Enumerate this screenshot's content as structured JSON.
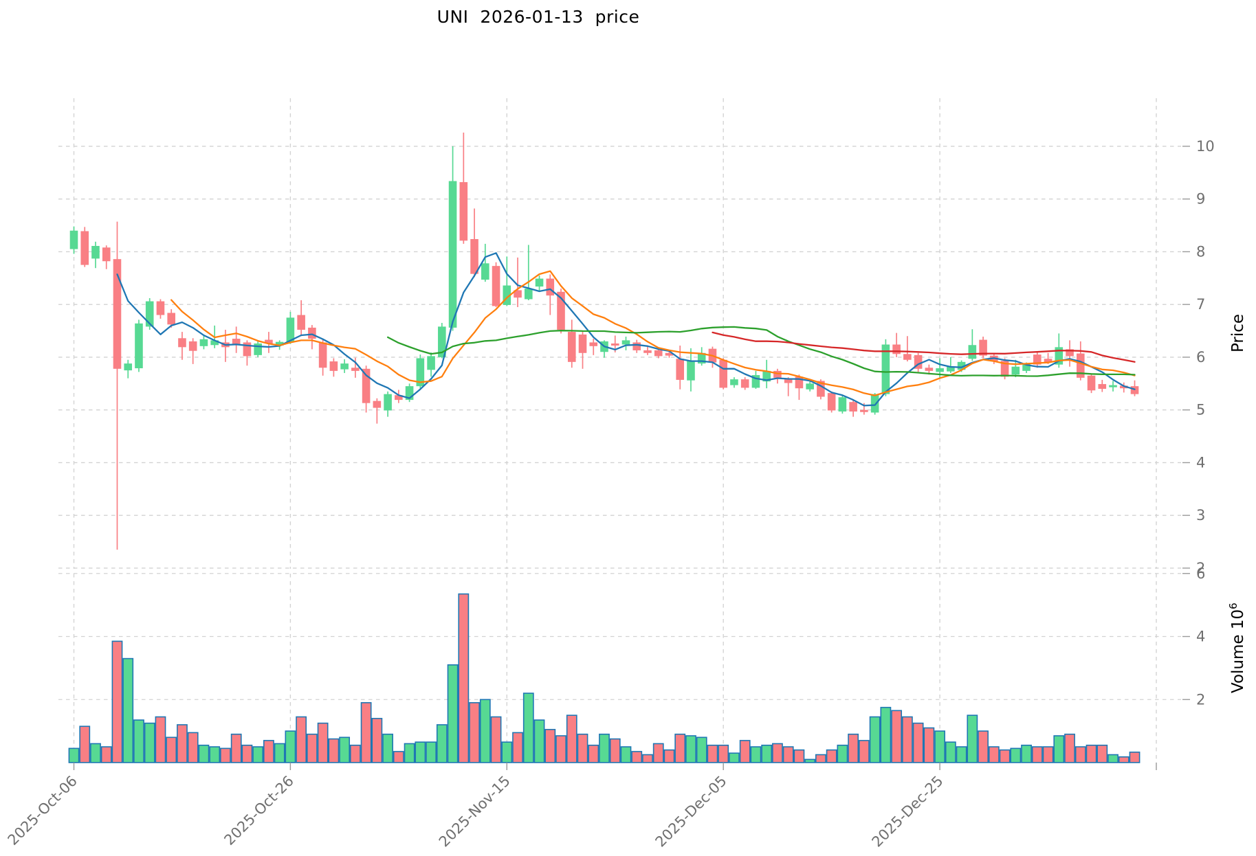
{
  "title": "UNI  2026-01-13  price",
  "chart_data": {
    "type": "candlestick",
    "title": "UNI  2026-01-13  price",
    "grid": true,
    "panels": [
      {
        "name": "price",
        "ylabel": "Price",
        "yticks": [
          2,
          3,
          4,
          5,
          6,
          7,
          8,
          9,
          10
        ],
        "ylim": [
          1.96,
          10.95
        ]
      },
      {
        "name": "volume",
        "ylabel": "Volume",
        "ylabel_scale": "10⁶",
        "yticks": [
          2,
          4,
          6
        ],
        "ylim": [
          0,
          6.06
        ],
        "unit": 1000000
      }
    ],
    "x_ticks": [
      {
        "index": 0,
        "label": "2025-Oct-06"
      },
      {
        "index": 20,
        "label": "2025-Oct-26"
      },
      {
        "index": 40,
        "label": "2025-Nov-15"
      },
      {
        "index": 60,
        "label": "2025-Dec-05"
      },
      {
        "index": 80,
        "label": "2025-Dec-25"
      },
      {
        "index": 100,
        "label": ""
      }
    ],
    "moving_averages": [
      {
        "name": "MA5",
        "window": 5,
        "color": "#1f77b4"
      },
      {
        "name": "MA10",
        "window": 10,
        "color": "#ff7f0e"
      },
      {
        "name": "MA30",
        "window": 30,
        "color": "#2ca02c"
      },
      {
        "name": "MA60",
        "window": 60,
        "color": "#d62728"
      }
    ],
    "colors": {
      "up": "#57d993",
      "down": "#f97f84",
      "volume_edge": "#1f77b4",
      "grid": "#d2d2d2",
      "tick_label": "#6f6f6f",
      "axis_label": "#000000"
    },
    "columns": [
      "date",
      "open",
      "high",
      "low",
      "close",
      "volume_millions"
    ],
    "candles": [
      [
        "2025-10-06",
        8.05,
        8.48,
        7.96,
        8.4,
        0.45
      ],
      [
        "2025-10-07",
        8.39,
        8.47,
        7.71,
        7.75,
        1.15
      ],
      [
        "2025-10-08",
        7.87,
        8.19,
        7.69,
        8.11,
        0.6
      ],
      [
        "2025-10-09",
        8.08,
        8.12,
        7.67,
        7.82,
        0.5
      ],
      [
        "2025-10-10",
        7.86,
        8.57,
        2.35,
        5.78,
        3.85
      ],
      [
        "2025-10-11",
        5.75,
        5.95,
        5.6,
        5.88,
        3.3
      ],
      [
        "2025-10-12",
        5.79,
        6.71,
        5.72,
        6.64,
        1.35
      ],
      [
        "2025-10-13",
        6.58,
        7.12,
        6.52,
        7.06,
        1.25
      ],
      [
        "2025-10-14",
        7.06,
        7.1,
        6.73,
        6.8,
        1.45
      ],
      [
        "2025-10-15",
        6.84,
        6.91,
        6.56,
        6.62,
        0.8
      ],
      [
        "2025-10-16",
        6.36,
        6.48,
        5.95,
        6.19,
        1.2
      ],
      [
        "2025-10-17",
        6.3,
        6.36,
        5.87,
        6.12,
        0.95
      ],
      [
        "2025-10-18",
        6.21,
        6.4,
        6.15,
        6.34,
        0.55
      ],
      [
        "2025-10-19",
        6.23,
        6.6,
        6.17,
        6.32,
        0.5
      ],
      [
        "2025-10-20",
        6.28,
        6.52,
        5.91,
        6.19,
        0.45
      ],
      [
        "2025-10-21",
        6.35,
        6.58,
        6.08,
        6.24,
        0.9
      ],
      [
        "2025-10-22",
        6.28,
        6.32,
        5.84,
        6.02,
        0.55
      ],
      [
        "2025-10-23",
        6.04,
        6.3,
        6.0,
        6.26,
        0.5
      ],
      [
        "2025-10-24",
        6.33,
        6.48,
        6.08,
        6.26,
        0.7
      ],
      [
        "2025-10-25",
        6.22,
        6.32,
        6.14,
        6.29,
        0.6
      ],
      [
        "2025-10-26",
        6.29,
        6.86,
        6.25,
        6.75,
        1.0
      ],
      [
        "2025-10-27",
        6.8,
        7.08,
        6.4,
        6.52,
        1.45
      ],
      [
        "2025-10-28",
        6.56,
        6.61,
        6.15,
        6.35,
        0.9
      ],
      [
        "2025-10-29",
        6.28,
        6.35,
        5.65,
        5.8,
        1.25
      ],
      [
        "2025-10-30",
        5.92,
        5.98,
        5.63,
        5.74,
        0.75
      ],
      [
        "2025-10-31",
        5.77,
        5.96,
        5.7,
        5.88,
        0.8
      ],
      [
        "2025-11-01",
        5.8,
        5.99,
        5.61,
        5.74,
        0.55
      ],
      [
        "2025-11-02",
        5.78,
        5.84,
        4.95,
        5.13,
        1.9
      ],
      [
        "2025-11-03",
        5.17,
        5.22,
        4.74,
        5.04,
        1.4
      ],
      [
        "2025-11-04",
        4.99,
        5.35,
        4.87,
        5.3,
        0.9
      ],
      [
        "2025-11-05",
        5.28,
        5.38,
        5.13,
        5.19,
        0.35
      ],
      [
        "2025-11-06",
        5.19,
        5.5,
        5.15,
        5.45,
        0.6
      ],
      [
        "2025-11-07",
        5.45,
        6.05,
        5.4,
        5.98,
        0.65
      ],
      [
        "2025-11-08",
        5.76,
        6.09,
        5.63,
        6.02,
        0.65
      ],
      [
        "2025-11-09",
        6.0,
        6.65,
        5.98,
        6.58,
        1.2
      ],
      [
        "2025-11-10",
        6.56,
        10.0,
        6.5,
        9.34,
        3.1
      ],
      [
        "2025-11-11",
        9.32,
        10.26,
        8.15,
        8.21,
        5.35
      ],
      [
        "2025-11-12",
        8.24,
        8.82,
        7.52,
        7.58,
        1.9
      ],
      [
        "2025-11-13",
        7.47,
        8.15,
        7.43,
        7.78,
        2.0
      ],
      [
        "2025-11-14",
        7.73,
        7.8,
        6.95,
        6.97,
        1.45
      ],
      [
        "2025-11-15",
        6.99,
        7.91,
        6.97,
        7.36,
        0.65
      ],
      [
        "2025-11-16",
        7.27,
        7.89,
        6.95,
        7.13,
        0.95
      ],
      [
        "2025-11-17",
        7.1,
        8.13,
        7.08,
        7.3,
        2.2
      ],
      [
        "2025-11-18",
        7.34,
        7.55,
        7.25,
        7.49,
        1.35
      ],
      [
        "2025-11-19",
        7.49,
        7.57,
        6.8,
        7.17,
        1.05
      ],
      [
        "2025-11-20",
        7.24,
        7.3,
        6.45,
        6.52,
        0.85
      ],
      [
        "2025-11-21",
        6.48,
        6.71,
        5.8,
        5.91,
        1.5
      ],
      [
        "2025-11-22",
        6.43,
        6.49,
        5.78,
        6.08,
        0.9
      ],
      [
        "2025-11-23",
        6.28,
        6.35,
        6.04,
        6.21,
        0.55
      ],
      [
        "2025-11-24",
        6.1,
        6.32,
        5.99,
        6.3,
        0.9
      ],
      [
        "2025-11-25",
        6.26,
        6.41,
        6.09,
        6.22,
        0.75
      ],
      [
        "2025-11-26",
        6.24,
        6.39,
        6.13,
        6.32,
        0.5
      ],
      [
        "2025-11-27",
        6.28,
        6.33,
        6.08,
        6.13,
        0.35
      ],
      [
        "2025-11-28",
        6.13,
        6.21,
        6.04,
        6.08,
        0.25
      ],
      [
        "2025-11-29",
        6.13,
        6.15,
        5.98,
        6.02,
        0.6
      ],
      [
        "2025-11-30",
        6.08,
        6.12,
        5.99,
        6.03,
        0.4
      ],
      [
        "2025-12-01",
        5.97,
        6.22,
        5.39,
        5.57,
        0.9
      ],
      [
        "2025-12-02",
        5.56,
        6.17,
        5.35,
        5.93,
        0.85
      ],
      [
        "2025-12-03",
        5.88,
        6.19,
        5.84,
        6.08,
        0.8
      ],
      [
        "2025-12-04",
        6.16,
        6.2,
        5.8,
        5.9,
        0.55
      ],
      [
        "2025-12-05",
        5.95,
        5.98,
        5.39,
        5.42,
        0.55
      ],
      [
        "2025-12-06",
        5.47,
        5.62,
        5.42,
        5.58,
        0.3
      ],
      [
        "2025-12-07",
        5.58,
        5.62,
        5.38,
        5.42,
        0.7
      ],
      [
        "2025-12-08",
        5.42,
        5.74,
        5.4,
        5.66,
        0.5
      ],
      [
        "2025-12-09",
        5.54,
        5.95,
        5.41,
        5.74,
        0.55
      ],
      [
        "2025-12-10",
        5.74,
        5.78,
        5.5,
        5.61,
        0.6
      ],
      [
        "2025-12-11",
        5.58,
        5.62,
        5.26,
        5.51,
        0.5
      ],
      [
        "2025-12-12",
        5.63,
        5.67,
        5.19,
        5.41,
        0.4
      ],
      [
        "2025-12-13",
        5.39,
        5.54,
        5.35,
        5.5,
        0.1
      ],
      [
        "2025-12-14",
        5.55,
        5.58,
        5.2,
        5.25,
        0.25
      ],
      [
        "2025-12-15",
        5.32,
        5.35,
        4.95,
        4.99,
        0.4
      ],
      [
        "2025-12-16",
        4.97,
        5.28,
        4.93,
        5.24,
        0.55
      ],
      [
        "2025-12-17",
        5.15,
        5.2,
        4.87,
        4.97,
        0.9
      ],
      [
        "2025-12-18",
        5.0,
        5.13,
        4.91,
        4.96,
        0.7
      ],
      [
        "2025-12-19",
        4.95,
        5.32,
        4.91,
        5.3,
        1.45
      ],
      [
        "2025-12-20",
        5.3,
        6.34,
        5.26,
        6.24,
        1.75
      ],
      [
        "2025-12-21",
        6.24,
        6.46,
        6.0,
        6.06,
        1.65
      ],
      [
        "2025-12-22",
        6.06,
        6.4,
        5.92,
        5.95,
        1.45
      ],
      [
        "2025-12-23",
        6.04,
        6.08,
        5.72,
        5.78,
        1.25
      ],
      [
        "2025-12-24",
        5.8,
        5.86,
        5.67,
        5.74,
        1.1
      ],
      [
        "2025-12-25",
        5.72,
        5.98,
        5.61,
        5.79,
        1.0
      ],
      [
        "2025-12-26",
        5.73,
        6.0,
        5.7,
        5.82,
        0.65
      ],
      [
        "2025-12-27",
        5.76,
        5.94,
        5.72,
        5.91,
        0.5
      ],
      [
        "2025-12-28",
        5.97,
        6.53,
        5.93,
        6.23,
        1.5
      ],
      [
        "2025-12-29",
        6.33,
        6.39,
        5.98,
        6.03,
        1.0
      ],
      [
        "2025-12-30",
        6.03,
        6.07,
        5.87,
        5.92,
        0.5
      ],
      [
        "2025-12-31",
        5.93,
        5.98,
        5.58,
        5.63,
        0.4
      ],
      [
        "2026-01-01",
        5.67,
        5.95,
        5.62,
        5.82,
        0.45
      ],
      [
        "2026-01-02",
        5.74,
        5.9,
        5.7,
        5.87,
        0.55
      ],
      [
        "2026-01-03",
        6.05,
        6.1,
        5.8,
        5.86,
        0.5
      ],
      [
        "2026-01-04",
        5.97,
        6.08,
        5.87,
        5.9,
        0.5
      ],
      [
        "2026-01-05",
        5.86,
        6.45,
        5.8,
        6.19,
        0.85
      ],
      [
        "2026-01-06",
        6.15,
        6.32,
        5.82,
        6.02,
        0.9
      ],
      [
        "2026-01-07",
        6.07,
        6.3,
        5.56,
        5.61,
        0.5
      ],
      [
        "2026-01-08",
        5.65,
        5.68,
        5.32,
        5.37,
        0.55
      ],
      [
        "2026-01-09",
        5.49,
        5.57,
        5.34,
        5.4,
        0.55
      ],
      [
        "2026-01-10",
        5.43,
        5.55,
        5.35,
        5.47,
        0.25
      ],
      [
        "2026-01-11",
        5.46,
        5.52,
        5.33,
        5.41,
        0.18
      ],
      [
        "2026-01-12",
        5.45,
        5.56,
        5.26,
        5.3,
        0.33
      ]
    ]
  }
}
